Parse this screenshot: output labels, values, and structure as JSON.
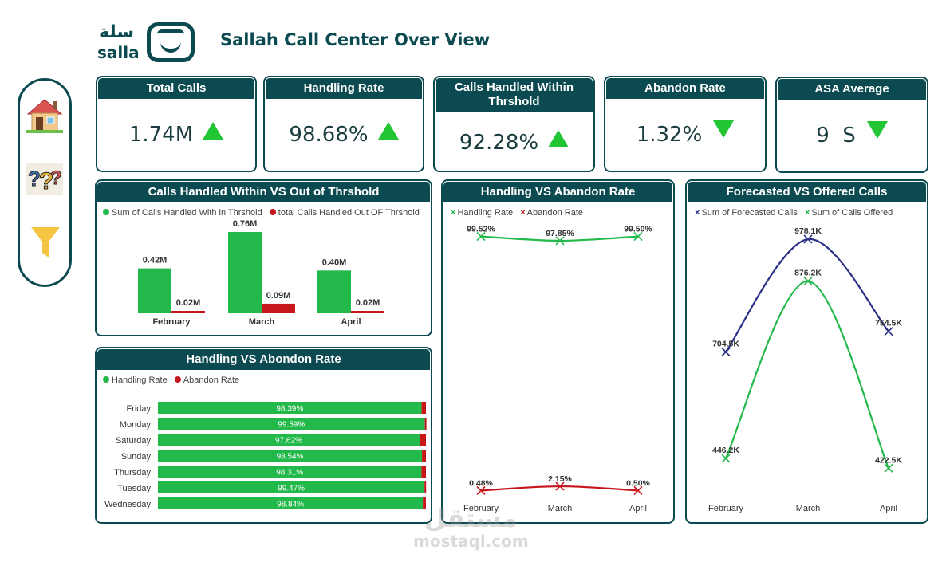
{
  "header": {
    "logo_ar": "سلة",
    "logo_en": "salla",
    "title": "Sallah Call Center Over View"
  },
  "nav": {
    "items": [
      {
        "name": "home-icon"
      },
      {
        "name": "question-icon"
      },
      {
        "name": "filter-icon"
      }
    ]
  },
  "kpis": [
    {
      "label": "Total Calls",
      "value": "1.74M",
      "trend": "up"
    },
    {
      "label": "Handling Rate",
      "value": "98.68%",
      "trend": "up"
    },
    {
      "label": "Calls Handled Within Thrshold",
      "value": "92.28%",
      "trend": "up"
    },
    {
      "label": "Abandon Rate",
      "value": "1.32%",
      "trend": "down"
    },
    {
      "label": "ASA Average",
      "value": "9  S",
      "trend": "down"
    }
  ],
  "colors": {
    "brand": "#0b4a50",
    "green": "#22b84a",
    "red": "#c8161d",
    "navy": "#2b2f86"
  },
  "chart_data": [
    {
      "id": "threshold",
      "type": "bar",
      "title": "Calls Handled Within VS Out of Thrshold",
      "legend": [
        "Sum of Calls Handled With in Thrshold",
        "total Calls Handled Out OF Thrshold"
      ],
      "categories": [
        "February",
        "March",
        "April"
      ],
      "series": [
        {
          "name": "Sum of Calls Handled With in Thrshold",
          "values": [
            0.42,
            0.76,
            0.4
          ],
          "labels": [
            "0.42M",
            "0.76M",
            "0.40M"
          ]
        },
        {
          "name": "total Calls Handled Out OF Thrshold",
          "values": [
            0.02,
            0.09,
            0.02
          ],
          "labels": [
            "0.02M",
            "0.09M",
            "0.02M"
          ]
        }
      ],
      "ylim": [
        0,
        0.76
      ]
    },
    {
      "id": "rate-line",
      "type": "line",
      "title": "Handling VS Abandon Rate",
      "legend": [
        "Handling Rate",
        "Abandon Rate"
      ],
      "categories": [
        "February",
        "March",
        "April"
      ],
      "series": [
        {
          "name": "Handling Rate",
          "values": [
            99.52,
            97.85,
            99.5
          ],
          "labels": [
            "99.52%",
            "97.85%",
            "99.50%"
          ]
        },
        {
          "name": "Abandon Rate",
          "values": [
            0.48,
            2.15,
            0.5
          ],
          "labels": [
            "0.48%",
            "2.15%",
            "0.50%"
          ]
        }
      ],
      "ylim": [
        0,
        100
      ]
    },
    {
      "id": "forecast",
      "type": "line",
      "title": "Forecasted VS Offered Calls",
      "legend": [
        "Sum of Forecasted Calls",
        "Sum of Calls Offered"
      ],
      "categories": [
        "February",
        "March",
        "April"
      ],
      "series": [
        {
          "name": "Sum of Forecasted Calls",
          "values": [
            704.5,
            978.1,
            754.5
          ],
          "labels": [
            "704.5K",
            "978.1K",
            "754.5K"
          ]
        },
        {
          "name": "Sum of Calls Offered",
          "values": [
            446.2,
            876.2,
            422.5
          ],
          "labels": [
            "446.2K",
            "876.2K",
            "422.5K"
          ]
        }
      ],
      "ylim": [
        400,
        980
      ]
    },
    {
      "id": "weekday",
      "type": "bar",
      "orientation": "horizontal-stacked",
      "title": "Handling VS Abondon Rate",
      "legend": [
        "Handling Rate",
        "Abandon Rate"
      ],
      "categories": [
        "Friday",
        "Monday",
        "Saturday",
        "Sunday",
        "Thursday",
        "Tuesday",
        "Wednesday"
      ],
      "series": [
        {
          "name": "Handling Rate",
          "values": [
            98.39,
            99.59,
            97.62,
            98.54,
            98.31,
            99.47,
            98.84
          ],
          "labels": [
            "98.39%",
            "99.59%",
            "97.62%",
            "98.54%",
            "98.31%",
            "99.47%",
            "98.84%"
          ]
        },
        {
          "name": "Abandon Rate",
          "values": [
            1.61,
            0.41,
            2.38,
            1.46,
            1.69,
            0.53,
            1.16
          ]
        }
      ],
      "xlim": [
        0,
        100
      ]
    }
  ],
  "watermark": {
    "ar": "مستقل",
    "en": "mostaql.com"
  }
}
